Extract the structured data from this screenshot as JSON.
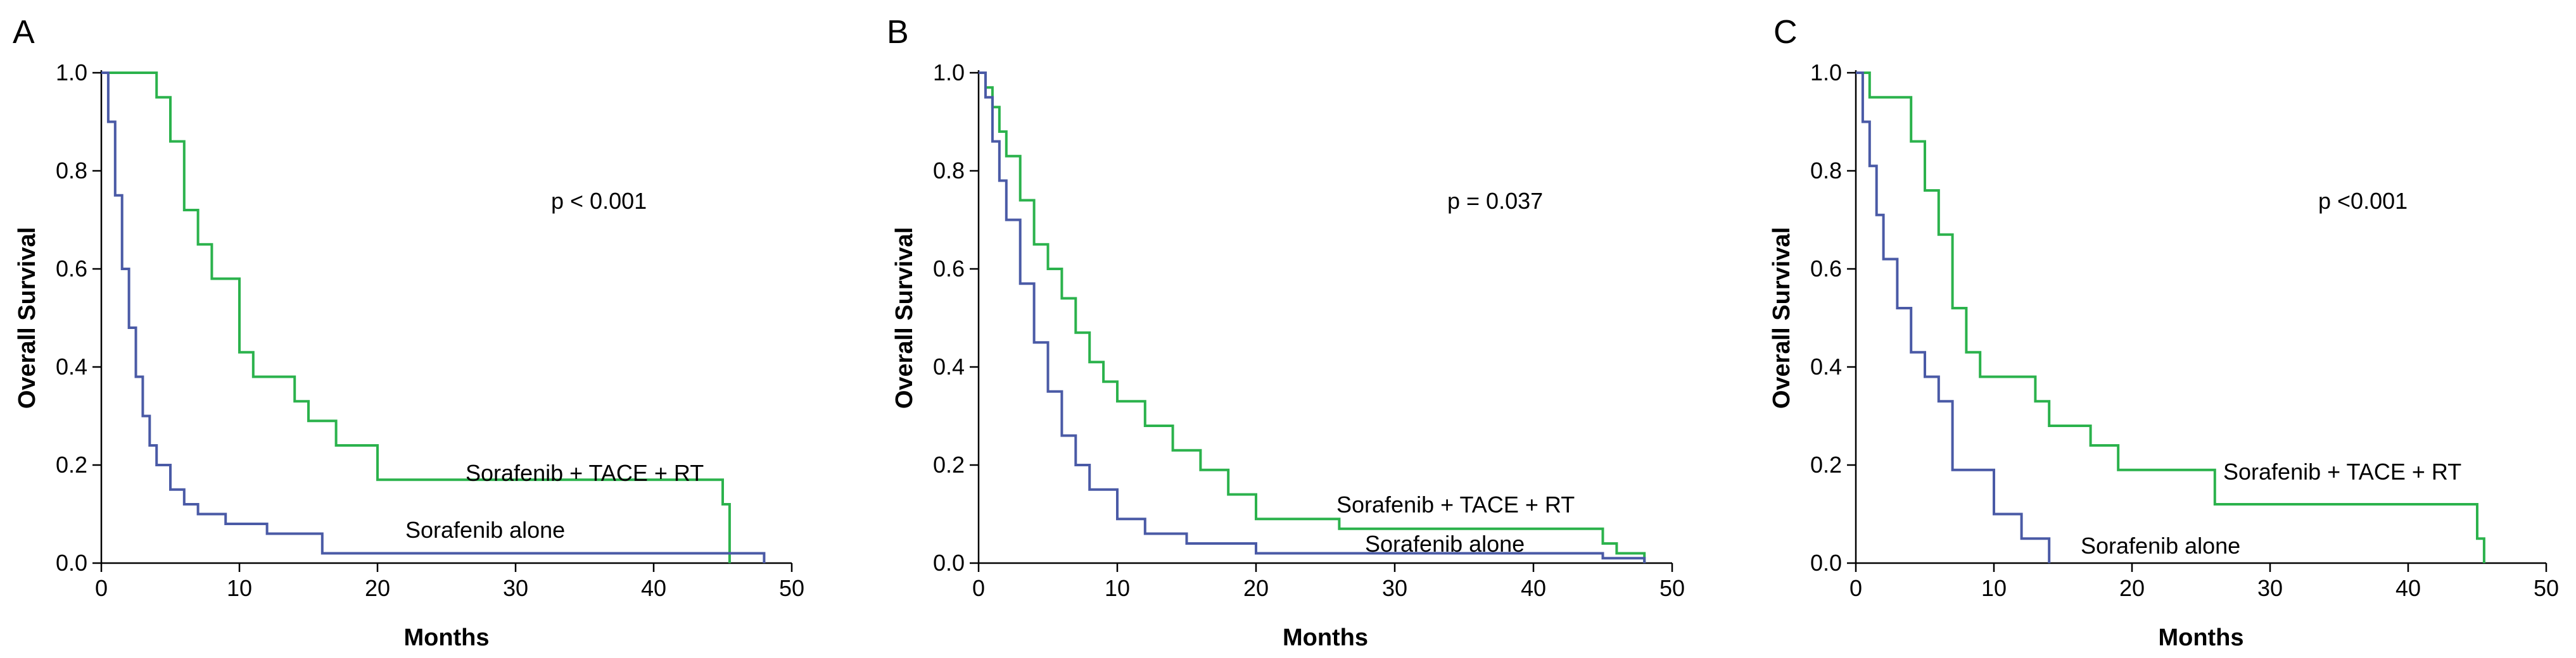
{
  "colors": {
    "combo": "#2bb24c",
    "alone": "#4a5aa6"
  },
  "chart_data": [
    {
      "type": "line",
      "panel": "A",
      "xlabel": "Months",
      "ylabel": "Overall Survival",
      "xlim": [
        0,
        50
      ],
      "ylim": [
        0,
        1
      ],
      "xticks": [
        0,
        10,
        20,
        30,
        40,
        50
      ],
      "yticks": [
        0.0,
        0.2,
        0.4,
        0.6,
        0.8,
        1.0
      ],
      "pvalue": "p < 0.001",
      "series": [
        {
          "name": "Sorafenib + TACE + RT",
          "key": "combo",
          "x": [
            0,
            4,
            5,
            6,
            7,
            8,
            10,
            11,
            14,
            15,
            17,
            20,
            45,
            45.5
          ],
          "y": [
            1.0,
            0.95,
            0.86,
            0.72,
            0.65,
            0.58,
            0.43,
            0.38,
            0.33,
            0.29,
            0.24,
            0.17,
            0.12,
            0.0
          ]
        },
        {
          "name": "Sorafenib alone",
          "key": "alone",
          "x": [
            0,
            0.5,
            1,
            1.5,
            2,
            2.5,
            3,
            3.5,
            4,
            5,
            6,
            7,
            9,
            12,
            16,
            48
          ],
          "y": [
            1.0,
            0.9,
            0.75,
            0.6,
            0.48,
            0.38,
            0.3,
            0.24,
            0.2,
            0.15,
            0.12,
            0.1,
            0.08,
            0.06,
            0.02,
            0.0
          ]
        }
      ]
    },
    {
      "type": "line",
      "panel": "B",
      "xlabel": "Months",
      "ylabel": "Overall Survival",
      "xlim": [
        0,
        50
      ],
      "ylim": [
        0,
        1
      ],
      "xticks": [
        0,
        10,
        20,
        30,
        40,
        50
      ],
      "yticks": [
        0.0,
        0.2,
        0.4,
        0.6,
        0.8,
        1.0
      ],
      "pvalue": "p = 0.037",
      "series": [
        {
          "name": "Sorafenib + TACE + RT",
          "key": "combo",
          "x": [
            0,
            0.5,
            1,
            1.5,
            2,
            3,
            4,
            5,
            6,
            7,
            8,
            9,
            10,
            12,
            14,
            16,
            18,
            20,
            26,
            45,
            46,
            48
          ],
          "y": [
            1.0,
            0.97,
            0.93,
            0.88,
            0.83,
            0.74,
            0.65,
            0.6,
            0.54,
            0.47,
            0.41,
            0.37,
            0.33,
            0.28,
            0.23,
            0.19,
            0.14,
            0.09,
            0.07,
            0.04,
            0.02,
            0.0
          ]
        },
        {
          "name": "Sorafenib alone",
          "key": "alone",
          "x": [
            0,
            0.5,
            1,
            1.5,
            2,
            3,
            4,
            5,
            6,
            7,
            8,
            10,
            12,
            15,
            20,
            45,
            48
          ],
          "y": [
            1.0,
            0.95,
            0.86,
            0.78,
            0.7,
            0.57,
            0.45,
            0.35,
            0.26,
            0.2,
            0.15,
            0.09,
            0.06,
            0.04,
            0.02,
            0.01,
            0.0
          ]
        }
      ]
    },
    {
      "type": "line",
      "panel": "C",
      "xlabel": "Months",
      "ylabel": "Overall Survival",
      "xlim": [
        0,
        50
      ],
      "ylim": [
        0,
        1
      ],
      "xticks": [
        0,
        10,
        20,
        30,
        40,
        50
      ],
      "yticks": [
        0.0,
        0.2,
        0.4,
        0.6,
        0.8,
        1.0
      ],
      "pvalue": "p <0.001",
      "series": [
        {
          "name": "Sorafenib + TACE + RT",
          "key": "combo",
          "x": [
            0,
            1,
            4,
            5,
            6,
            7,
            8,
            9,
            13,
            14,
            17,
            19,
            26,
            45,
            45.5
          ],
          "y": [
            1.0,
            0.95,
            0.86,
            0.76,
            0.67,
            0.52,
            0.43,
            0.38,
            0.33,
            0.28,
            0.24,
            0.19,
            0.12,
            0.05,
            0.0
          ]
        },
        {
          "name": "Sorafenib alone",
          "key": "alone",
          "x": [
            0,
            0.5,
            1,
            1.5,
            2,
            3,
            4,
            5,
            6,
            7,
            10,
            12,
            14
          ],
          "y": [
            1.0,
            0.9,
            0.81,
            0.71,
            0.62,
            0.52,
            0.43,
            0.38,
            0.33,
            0.19,
            0.1,
            0.05,
            0.0
          ]
        }
      ]
    }
  ]
}
